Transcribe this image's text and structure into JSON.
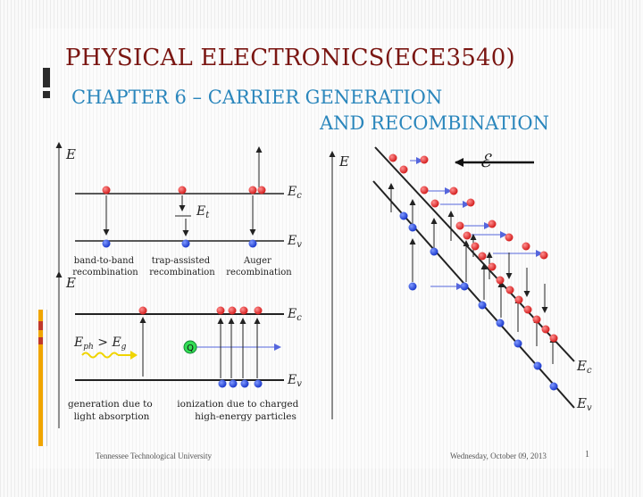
{
  "slide": {
    "title": "PHYSICAL ELECTRONICS(ECE3540)",
    "subtitle_line1": "CHAPTER 6 – CARRIER GENERATION",
    "subtitle_line2": "AND RECOMBINATION",
    "footer_left": "Tennessee Technological University",
    "footer_date": "Wednesday, October 09, 2013",
    "page_number": "1"
  },
  "diagram": {
    "energy_axis_label": "E",
    "band_labels": {
      "conduction": "Ec",
      "valence": "Ev",
      "trap": "Et"
    },
    "recombination_labels": [
      [
        "band-to-band",
        "recombination"
      ],
      [
        "trap-assisted",
        "recombination"
      ],
      [
        "Auger",
        "recombination"
      ]
    ],
    "photon_condition": {
      "lhs": "E",
      "lhs_sub": "ph",
      "op": " > ",
      "rhs": "E",
      "rhs_sub": "g"
    },
    "charged_particle_label": "Q",
    "generation_labels": [
      [
        "generation due to",
        "light absorption"
      ],
      [
        "ionization due to charged",
        "high-energy particles"
      ]
    ],
    "field_symbol": "ℰ"
  },
  "colors": {
    "title": "#7a1612",
    "subtitle": "#2a86bc",
    "electron": "#dd1c1c",
    "hole": "#1c3fd6",
    "transition_arrow": "#5566dd",
    "particle_fill": "#33dd55",
    "photon": "#f0d400",
    "sidebar_orange": "#f0a500",
    "sidebar_red": "#c0392b",
    "sidebar_black": "#2b2b2b"
  }
}
